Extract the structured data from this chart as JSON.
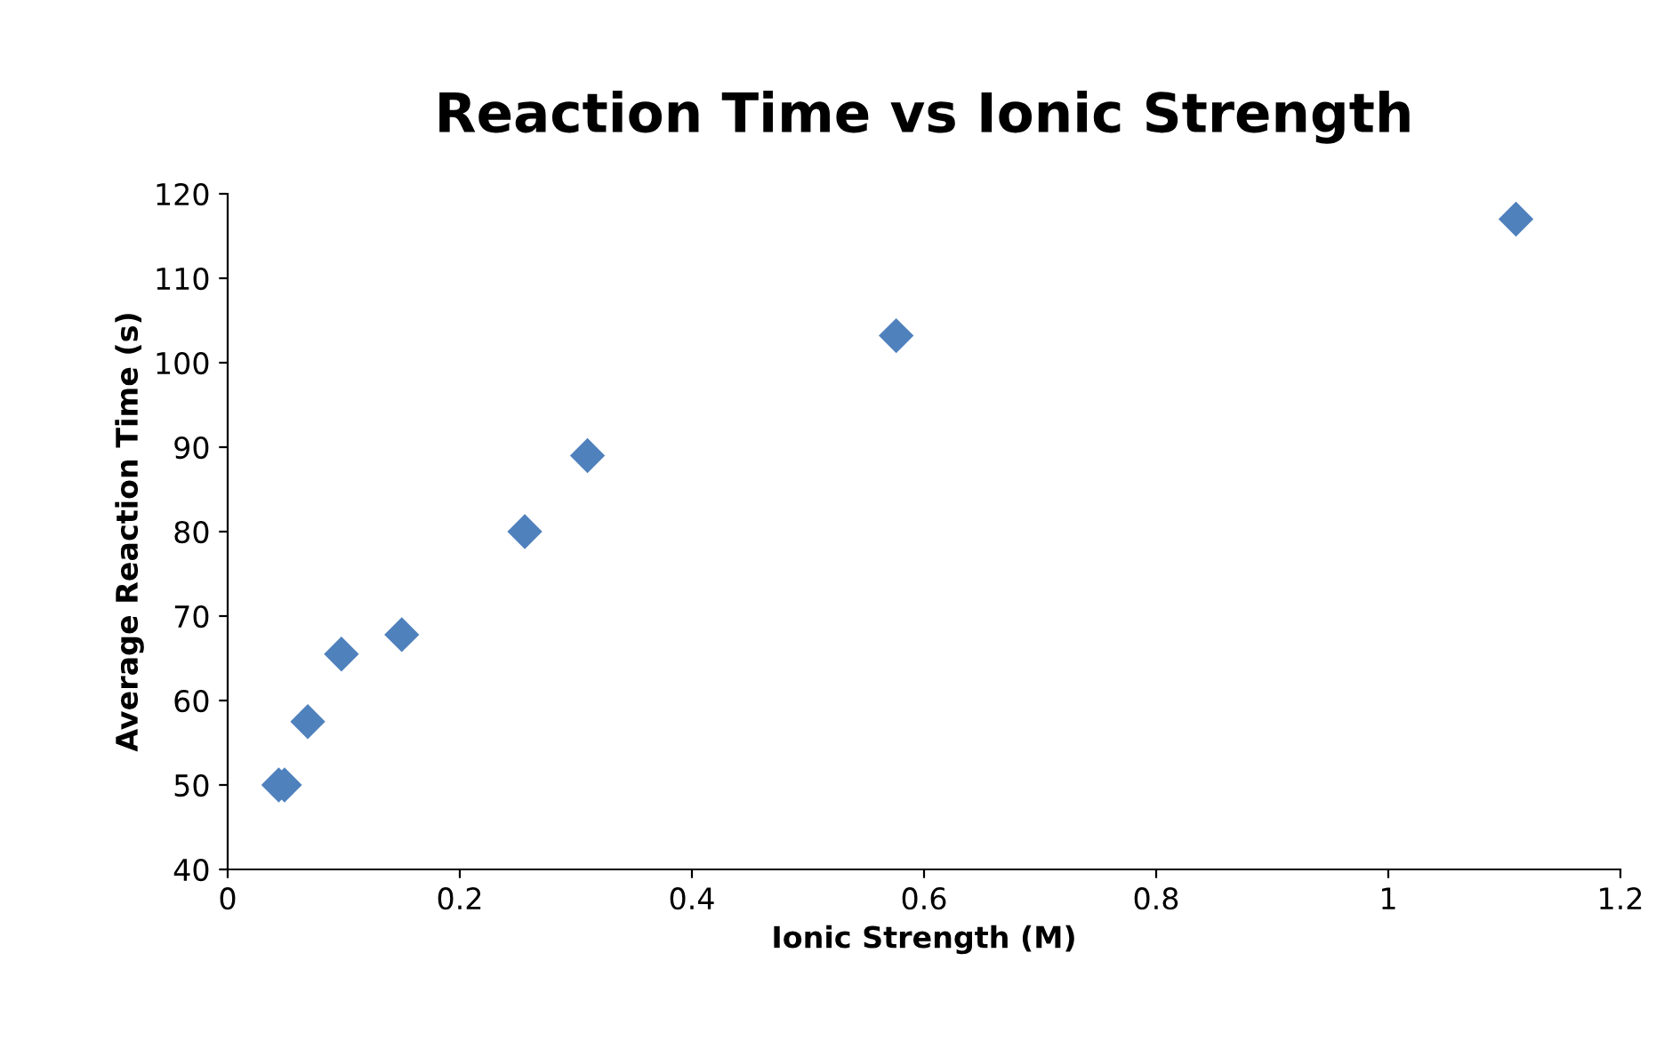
{
  "chart_data": {
    "type": "scatter",
    "title": "Reaction Time vs Ionic Strength",
    "xlabel": "Ionic Strength (M)",
    "ylabel": "Average Reaction Time (s)",
    "x": [
      0.044,
      0.049,
      0.069,
      0.098,
      0.15,
      0.256,
      0.31,
      0.576,
      1.11
    ],
    "series": [
      {
        "color": "#4f81bd",
        "values": [
          50,
          50,
          57.5,
          65.5,
          67.8,
          80,
          89,
          103.2,
          117
        ]
      }
    ],
    "xlim": [
      0,
      1.2
    ],
    "xticks": [
      0,
      0.2,
      0.4,
      0.6,
      0.8,
      1,
      1.2
    ],
    "ylim": [
      40,
      120
    ],
    "yticks": [
      40,
      50,
      60,
      70,
      80,
      90,
      100,
      110,
      120
    ],
    "marker": "diamond",
    "grid": false,
    "legend": false
  }
}
